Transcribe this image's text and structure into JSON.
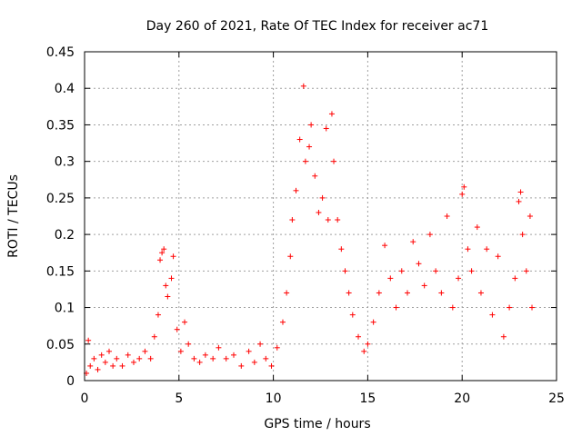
{
  "chart_data": {
    "type": "scatter",
    "title": "Day 260 of 2021, Rate Of TEC Index for receiver ac71",
    "xlabel": "GPS time / hours",
    "ylabel": "ROTI / TECUs",
    "xlim": [
      0,
      25
    ],
    "ylim": [
      0,
      0.45
    ],
    "x_ticks": [
      0,
      5,
      10,
      15,
      20,
      25
    ],
    "x_tick_labels": [
      "0",
      "5",
      "10",
      "15",
      "20",
      "25"
    ],
    "y_ticks": [
      0,
      0.05,
      0.1,
      0.15,
      0.2,
      0.25,
      0.3,
      0.35,
      0.4,
      0.45
    ],
    "y_tick_labels": [
      "0",
      "0.05",
      "0.1",
      "0.15",
      "0.2",
      "0.25",
      "0.3",
      "0.35",
      "0.4",
      "0.45"
    ],
    "grid": true,
    "marker": "+",
    "marker_color": "#ff0000",
    "series": [
      {
        "points": [
          [
            0.1,
            0.01
          ],
          [
            0.2,
            0.055
          ],
          [
            0.3,
            0.02
          ],
          [
            0.5,
            0.03
          ],
          [
            0.7,
            0.015
          ],
          [
            0.9,
            0.035
          ],
          [
            1.1,
            0.025
          ],
          [
            1.3,
            0.04
          ],
          [
            1.5,
            0.02
          ],
          [
            1.7,
            0.03
          ],
          [
            2.0,
            0.02
          ],
          [
            2.3,
            0.035
          ],
          [
            2.6,
            0.025
          ],
          [
            2.9,
            0.03
          ],
          [
            3.2,
            0.04
          ],
          [
            3.5,
            0.03
          ],
          [
            3.7,
            0.06
          ],
          [
            3.9,
            0.09
          ],
          [
            4.0,
            0.165
          ],
          [
            4.1,
            0.175
          ],
          [
            4.2,
            0.18
          ],
          [
            4.3,
            0.13
          ],
          [
            4.4,
            0.115
          ],
          [
            4.6,
            0.14
          ],
          [
            4.7,
            0.17
          ],
          [
            4.9,
            0.07
          ],
          [
            5.1,
            0.04
          ],
          [
            5.3,
            0.08
          ],
          [
            5.5,
            0.05
          ],
          [
            5.8,
            0.03
          ],
          [
            6.1,
            0.025
          ],
          [
            6.4,
            0.035
          ],
          [
            6.8,
            0.03
          ],
          [
            7.1,
            0.045
          ],
          [
            7.5,
            0.03
          ],
          [
            7.9,
            0.035
          ],
          [
            8.3,
            0.02
          ],
          [
            8.7,
            0.04
          ],
          [
            9.0,
            0.025
          ],
          [
            9.3,
            0.05
          ],
          [
            9.6,
            0.03
          ],
          [
            9.9,
            0.02
          ],
          [
            10.2,
            0.045
          ],
          [
            10.5,
            0.08
          ],
          [
            10.7,
            0.12
          ],
          [
            10.9,
            0.17
          ],
          [
            11.0,
            0.22
          ],
          [
            11.2,
            0.26
          ],
          [
            11.4,
            0.33
          ],
          [
            11.6,
            0.403
          ],
          [
            11.7,
            0.3
          ],
          [
            11.9,
            0.32
          ],
          [
            12.0,
            0.35
          ],
          [
            12.2,
            0.28
          ],
          [
            12.4,
            0.23
          ],
          [
            12.6,
            0.25
          ],
          [
            12.8,
            0.345
          ],
          [
            12.9,
            0.22
          ],
          [
            13.1,
            0.365
          ],
          [
            13.2,
            0.3
          ],
          [
            13.4,
            0.22
          ],
          [
            13.6,
            0.18
          ],
          [
            13.8,
            0.15
          ],
          [
            14.0,
            0.12
          ],
          [
            14.2,
            0.09
          ],
          [
            14.5,
            0.06
          ],
          [
            14.8,
            0.04
          ],
          [
            15.0,
            0.05
          ],
          [
            15.3,
            0.08
          ],
          [
            15.6,
            0.12
          ],
          [
            15.9,
            0.185
          ],
          [
            16.2,
            0.14
          ],
          [
            16.5,
            0.1
          ],
          [
            16.8,
            0.15
          ],
          [
            17.1,
            0.12
          ],
          [
            17.4,
            0.19
          ],
          [
            17.7,
            0.16
          ],
          [
            18.0,
            0.13
          ],
          [
            18.3,
            0.2
          ],
          [
            18.6,
            0.15
          ],
          [
            18.9,
            0.12
          ],
          [
            19.2,
            0.225
          ],
          [
            19.5,
            0.1
          ],
          [
            19.8,
            0.14
          ],
          [
            20.0,
            0.255
          ],
          [
            20.1,
            0.265
          ],
          [
            20.3,
            0.18
          ],
          [
            20.5,
            0.15
          ],
          [
            20.8,
            0.21
          ],
          [
            21.0,
            0.12
          ],
          [
            21.3,
            0.18
          ],
          [
            21.6,
            0.09
          ],
          [
            21.9,
            0.17
          ],
          [
            22.2,
            0.06
          ],
          [
            22.5,
            0.1
          ],
          [
            22.8,
            0.14
          ],
          [
            23.0,
            0.245
          ],
          [
            23.1,
            0.258
          ],
          [
            23.2,
            0.2
          ],
          [
            23.4,
            0.15
          ],
          [
            23.6,
            0.225
          ],
          [
            23.7,
            0.1
          ]
        ]
      }
    ]
  }
}
